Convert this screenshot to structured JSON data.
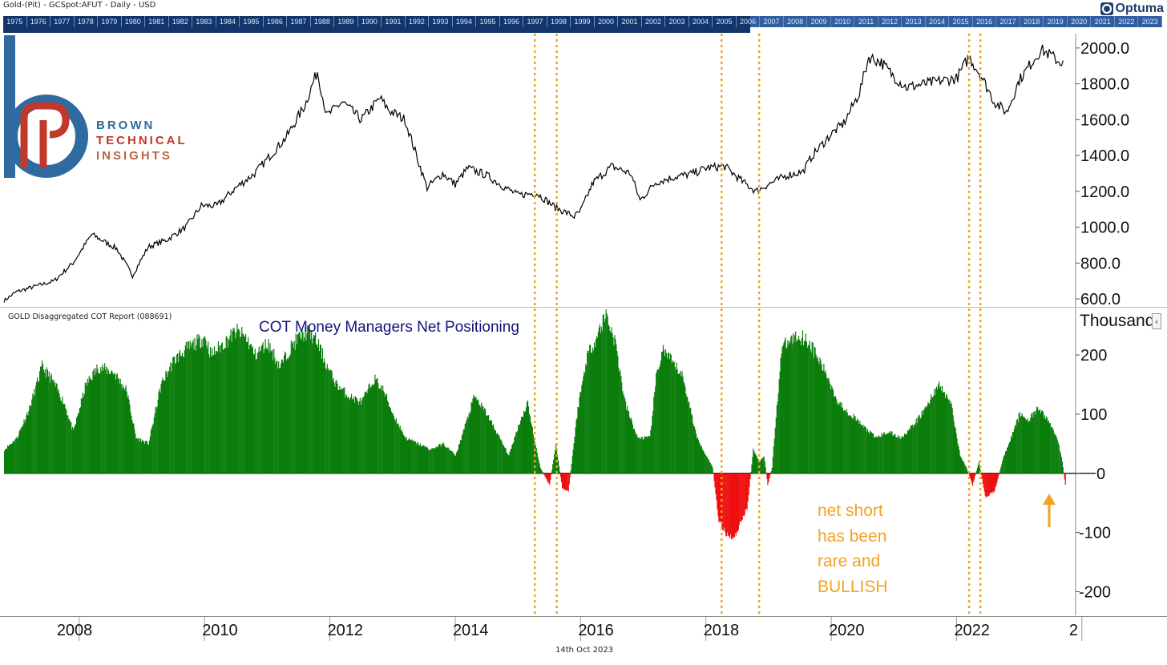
{
  "header": {
    "title": "Gold-(Pit) - GCSpot:AFUT - Daily - USD",
    "logo_text": "Optuma"
  },
  "year_strip": [
    "1975",
    "1976",
    "1977",
    "1978",
    "1979",
    "1980",
    "1981",
    "1982",
    "1983",
    "1984",
    "1985",
    "1986",
    "1987",
    "1988",
    "1989",
    "1990",
    "1991",
    "1992",
    "1993",
    "1994",
    "1995",
    "1996",
    "1997",
    "1998",
    "1999",
    "2000",
    "2001",
    "2002",
    "2003",
    "2004",
    "2005",
    "2006",
    "2007",
    "2008",
    "2009",
    "2010",
    "2011",
    "2012",
    "2013",
    "2014",
    "2015",
    "2016",
    "2017",
    "2018",
    "2019",
    "2020",
    "2021",
    "2022",
    "2023"
  ],
  "brand": {
    "line1": "BROWN",
    "line2": "TECHNICAL",
    "line3": "INSIGHTS",
    "colors": [
      "#2f6aa0",
      "#c0392b"
    ]
  },
  "chart_data": [
    {
      "type": "line",
      "title": "",
      "xlabel": "",
      "ylabel": "",
      "x_ticks": [
        "2008",
        "2010",
        "2012",
        "2014",
        "2016",
        "2018",
        "2020",
        "2022",
        "2"
      ],
      "y_ticks": [
        "600.0",
        "800.0",
        "1000.0",
        "1200.0",
        "1400.0",
        "1600.0",
        "1800.0",
        "2000.0"
      ],
      "ylim": [
        560,
        2080
      ],
      "xlim": [
        2006.8,
        2023.9
      ],
      "color": "#000000",
      "series": [
        {
          "x": [
            2006.8,
            2007.0,
            2007.3,
            2007.6,
            2007.9,
            2008.2,
            2008.4,
            2008.6,
            2008.85,
            2009.1,
            2009.4,
            2009.7,
            2009.95,
            2010.2,
            2010.5,
            2010.8,
            2011.0,
            2011.3,
            2011.6,
            2011.8,
            2011.95,
            2012.2,
            2012.5,
            2012.8,
            2012.95,
            2013.2,
            2013.4,
            2013.55,
            2013.8,
            2014.0,
            2014.2,
            2014.5,
            2014.8,
            2015.0,
            2015.3,
            2015.6,
            2015.9,
            2016.0,
            2016.2,
            2016.5,
            2016.8,
            2016.95,
            2017.2,
            2017.5,
            2017.8,
            2018.0,
            2018.3,
            2018.6,
            2018.8,
            2019.0,
            2019.3,
            2019.55,
            2019.7,
            2019.9,
            2020.0,
            2020.2,
            2020.45,
            2020.6,
            2020.8,
            2021.0,
            2021.2,
            2021.5,
            2021.8,
            2022.0,
            2022.2,
            2022.4,
            2022.6,
            2022.8,
            2023.0,
            2023.2,
            2023.35,
            2023.5,
            2023.65,
            2023.7
          ],
          "values": [
            590,
            640,
            670,
            700,
            800,
            960,
            920,
            880,
            730,
            890,
            930,
            1000,
            1120,
            1120,
            1220,
            1300,
            1380,
            1500,
            1680,
            1870,
            1620,
            1700,
            1600,
            1720,
            1650,
            1600,
            1380,
            1220,
            1300,
            1240,
            1330,
            1290,
            1220,
            1180,
            1190,
            1110,
            1060,
            1090,
            1250,
            1340,
            1300,
            1150,
            1250,
            1280,
            1300,
            1330,
            1340,
            1250,
            1200,
            1240,
            1290,
            1310,
            1400,
            1480,
            1520,
            1580,
            1750,
            1950,
            1920,
            1840,
            1780,
            1800,
            1820,
            1830,
            1950,
            1840,
            1700,
            1640,
            1820,
            1920,
            1990,
            1960,
            1920,
            1930
          ]
        }
      ]
    },
    {
      "type": "bar",
      "title": "COT Money Managers Net Positioning",
      "report": "GOLD Disaggregated COT Report (088691)",
      "ylabel": "Thousands",
      "y_ticks": [
        "-200",
        "-100",
        "0",
        "100",
        "200"
      ],
      "ylim": [
        -240,
        280
      ],
      "pos_color": "#0a7d0a",
      "neg_color": "#ee1111",
      "series": [
        {
          "x": [
            2006.8,
            2007.0,
            2007.2,
            2007.4,
            2007.55,
            2007.75,
            2007.9,
            2008.1,
            2008.3,
            2008.55,
            2008.75,
            2008.9,
            2009.1,
            2009.3,
            2009.5,
            2009.7,
            2009.85,
            2010.0,
            2010.1,
            2010.3,
            2010.5,
            2010.65,
            2010.8,
            2011.0,
            2011.2,
            2011.35,
            2011.5,
            2011.65,
            2011.8,
            2011.95,
            2012.1,
            2012.3,
            2012.5,
            2012.7,
            2012.85,
            2013.0,
            2013.2,
            2013.4,
            2013.6,
            2013.8,
            2014.0,
            2014.15,
            2014.3,
            2014.5,
            2014.7,
            2014.85,
            2015.0,
            2015.15,
            2015.25,
            2015.35,
            2015.5,
            2015.6,
            2015.7,
            2015.8,
            2015.95,
            2016.1,
            2016.25,
            2016.4,
            2016.55,
            2016.7,
            2016.9,
            2017.1,
            2017.2,
            2017.3,
            2017.5,
            2017.6,
            2017.7,
            2017.85,
            2018.0,
            2018.1,
            2018.2,
            2018.3,
            2018.45,
            2018.55,
            2018.65,
            2018.75,
            2018.85,
            2018.92,
            2018.98,
            2019.05,
            2019.2,
            2019.4,
            2019.55,
            2019.65,
            2019.8,
            2019.95,
            2020.1,
            2020.3,
            2020.5,
            2020.7,
            2020.9,
            2021.1,
            2021.3,
            2021.5,
            2021.7,
            2021.9,
            2022.0,
            2022.05,
            2022.15,
            2022.25,
            2022.35,
            2022.45,
            2022.6,
            2022.75,
            2022.9,
            2023.0,
            2023.15,
            2023.3,
            2023.45,
            2023.6,
            2023.68,
            2023.74
          ],
          "values": [
            40,
            60,
            110,
            180,
            160,
            120,
            70,
            150,
            180,
            170,
            140,
            60,
            50,
            150,
            190,
            210,
            220,
            230,
            200,
            220,
            240,
            230,
            200,
            220,
            180,
            210,
            230,
            240,
            220,
            180,
            150,
            130,
            120,
            160,
            140,
            100,
            60,
            50,
            40,
            50,
            30,
            80,
            130,
            100,
            60,
            30,
            80,
            120,
            60,
            10,
            -20,
            50,
            -25,
            -30,
            110,
            200,
            230,
            270,
            220,
            120,
            60,
            60,
            160,
            210,
            180,
            170,
            130,
            60,
            30,
            10,
            -80,
            -100,
            -110,
            -80,
            -60,
            40,
            20,
            30,
            -20,
            10,
            210,
            230,
            230,
            220,
            190,
            160,
            120,
            100,
            80,
            60,
            70,
            60,
            80,
            110,
            150,
            120,
            60,
            30,
            10,
            -20,
            20,
            -40,
            -30,
            30,
            70,
            100,
            90,
            110,
            90,
            60,
            20,
            -30
          ]
        }
      ]
    }
  ]
}
